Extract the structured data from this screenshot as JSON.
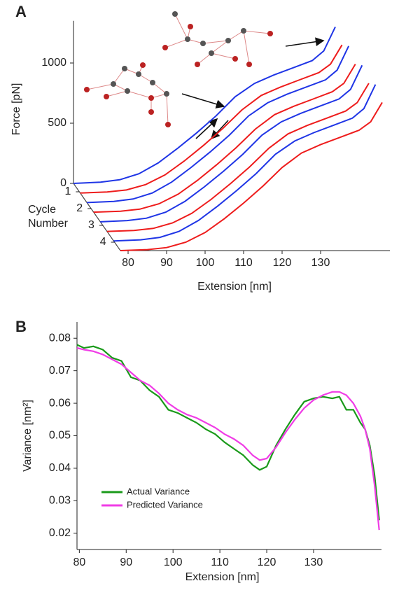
{
  "chart_data": [
    {
      "type": "waterfall",
      "panel_label": "A",
      "xlabel": "Extension [nm]",
      "ylabel": "Force [pN]",
      "zlabel": "Cycle Number",
      "xlim": [
        78,
        148
      ],
      "xticks": [
        80,
        90,
        100,
        110,
        120,
        130
      ],
      "ylim": [
        0,
        1350
      ],
      "yticks": [
        0,
        500,
        1000
      ],
      "zlim": [
        0.5,
        4.5
      ],
      "zticks": [
        1,
        2,
        3,
        4
      ],
      "x": [
        78,
        85,
        90,
        95,
        100,
        105,
        110,
        115,
        120,
        125,
        130,
        135,
        140,
        143,
        146
      ],
      "series": [
        {
          "color": "#1f35e6",
          "values": [
            0,
            10,
            30,
            80,
            170,
            290,
            420,
            560,
            720,
            830,
            900,
            960,
            1020,
            1100,
            1300
          ]
        },
        {
          "color": "#ee1c1c",
          "values": [
            0,
            8,
            25,
            70,
            150,
            265,
            395,
            535,
            690,
            810,
            880,
            940,
            1000,
            1070,
            1230
          ]
        },
        {
          "color": "#1f35e6",
          "values": [
            0,
            10,
            30,
            80,
            170,
            290,
            420,
            560,
            720,
            830,
            900,
            960,
            1020,
            1100,
            1300
          ]
        },
        {
          "color": "#ee1c1c",
          "values": [
            0,
            8,
            25,
            70,
            150,
            265,
            395,
            535,
            690,
            810,
            880,
            940,
            1000,
            1070,
            1230
          ]
        },
        {
          "color": "#1f35e6",
          "values": [
            0,
            10,
            30,
            80,
            170,
            290,
            420,
            560,
            720,
            830,
            900,
            960,
            1020,
            1100,
            1300
          ]
        },
        {
          "color": "#ee1c1c",
          "values": [
            0,
            8,
            25,
            70,
            150,
            265,
            395,
            535,
            690,
            810,
            880,
            940,
            1000,
            1070,
            1230
          ]
        },
        {
          "color": "#1f35e6",
          "values": [
            0,
            10,
            30,
            80,
            170,
            290,
            420,
            560,
            720,
            830,
            900,
            960,
            1020,
            1100,
            1300
          ]
        },
        {
          "color": "#ee1c1c",
          "values": [
            0,
            8,
            25,
            70,
            150,
            265,
            395,
            535,
            690,
            810,
            880,
            940,
            1000,
            1070,
            1230
          ]
        }
      ]
    },
    {
      "type": "line",
      "panel_label": "B",
      "xlabel": "Extension [nm]",
      "ylabel": "Variance [nm²]",
      "xlim": [
        79.5,
        144.5
      ],
      "xticks": [
        80,
        90,
        100,
        110,
        120,
        130
      ],
      "ylim": [
        0.015,
        0.085
      ],
      "yticks": [
        0.02,
        0.03,
        0.04,
        0.05,
        0.06,
        0.07,
        0.08
      ],
      "legend": "lower left",
      "x": [
        79.5,
        81,
        83,
        85,
        87,
        89,
        91,
        93,
        95,
        97,
        99,
        101,
        103,
        105,
        107,
        109,
        111,
        113,
        115,
        117,
        118.5,
        120,
        122,
        124,
        126,
        128,
        130,
        132,
        134,
        135.5,
        137,
        138.5,
        140,
        141,
        142,
        143,
        144
      ],
      "series": [
        {
          "name": "Actual Variance",
          "color": "#1a9a1a",
          "values": [
            0.078,
            0.077,
            0.0775,
            0.0765,
            0.074,
            0.073,
            0.068,
            0.067,
            0.064,
            0.062,
            0.058,
            0.057,
            0.0555,
            0.054,
            0.052,
            0.0505,
            0.048,
            0.046,
            0.044,
            0.041,
            0.0395,
            0.0405,
            0.047,
            0.052,
            0.0565,
            0.0605,
            0.0615,
            0.062,
            0.0615,
            0.062,
            0.058,
            0.058,
            0.054,
            0.052,
            0.047,
            0.038,
            0.024
          ]
        },
        {
          "name": "Predicted Variance",
          "color": "#f03ce6",
          "values": [
            0.077,
            0.0765,
            0.076,
            0.075,
            0.0735,
            0.072,
            0.0695,
            0.067,
            0.0655,
            0.063,
            0.06,
            0.058,
            0.0565,
            0.0555,
            0.054,
            0.0525,
            0.0505,
            0.049,
            0.047,
            0.044,
            0.0425,
            0.043,
            0.0465,
            0.051,
            0.055,
            0.0585,
            0.061,
            0.0625,
            0.0635,
            0.0635,
            0.0625,
            0.06,
            0.056,
            0.052,
            0.046,
            0.035,
            0.021
          ]
        }
      ]
    }
  ]
}
